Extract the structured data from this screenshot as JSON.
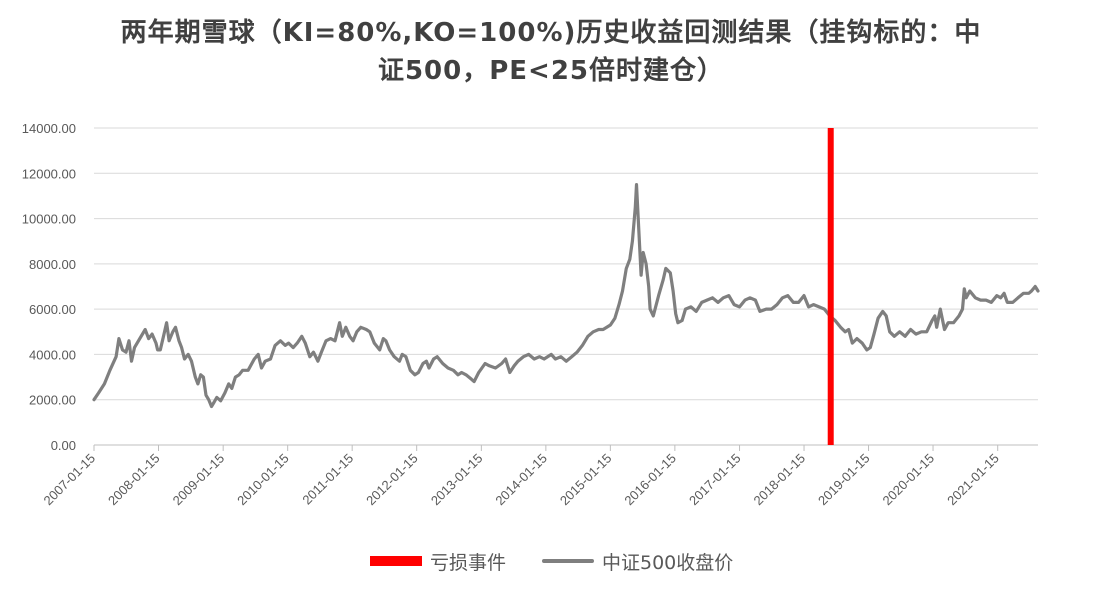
{
  "title": {
    "line1": "两年期雪球（KI=80%,KO=100%)历史收益回测结果（挂钩标的：中",
    "line2": "证500，PE<25倍时建仓）"
  },
  "legend": {
    "loss_label": "亏损事件",
    "index_label": "中证500收盘价"
  },
  "colors": {
    "loss": "#ff0000",
    "index": "#7f7f7f",
    "grid": "#d9d9d9",
    "axis_text": "#595959"
  },
  "chart_data": {
    "type": "line",
    "title": "两年期雪球（KI=80%,KO=100%)历史收益回测结果（挂钩标的：中证500，PE<25倍时建仓）",
    "ylim": [
      0,
      14000
    ],
    "y_ticks": [
      "0.00",
      "2000.00",
      "4000.00",
      "6000.00",
      "8000.00",
      "10000.00",
      "12000.00",
      "14000.00"
    ],
    "x_range": [
      "2007-01-15",
      "2021-08-31"
    ],
    "x_ticks": [
      "2007-01-15",
      "2008-01-15",
      "2009-01-15",
      "2010-01-15",
      "2011-01-15",
      "2012-01-15",
      "2013-01-15",
      "2014-01-15",
      "2015-01-15",
      "2016-01-15",
      "2017-01-15",
      "2018-01-15",
      "2019-01-15",
      "2020-01-15",
      "2021-01-15"
    ],
    "grid": "horizontal",
    "legend_position": "bottom",
    "series": [
      {
        "name": "中证500收盘价",
        "type": "line",
        "points": [
          [
            "2007-01-15",
            2000
          ],
          [
            "2007-02-10",
            2300
          ],
          [
            "2007-03-15",
            2700
          ],
          [
            "2007-04-15",
            3300
          ],
          [
            "2007-05-20",
            3900
          ],
          [
            "2007-06-05",
            4700
          ],
          [
            "2007-06-25",
            4200
          ],
          [
            "2007-07-15",
            4100
          ],
          [
            "2007-08-01",
            4600
          ],
          [
            "2007-08-15",
            3700
          ],
          [
            "2007-09-01",
            4300
          ],
          [
            "2007-10-01",
            4700
          ],
          [
            "2007-11-01",
            5100
          ],
          [
            "2007-11-20",
            4700
          ],
          [
            "2007-12-10",
            4900
          ],
          [
            "2008-01-01",
            4500
          ],
          [
            "2008-01-10",
            4200
          ],
          [
            "2008-01-25",
            4200
          ],
          [
            "2008-02-15",
            4900
          ],
          [
            "2008-03-01",
            5400
          ],
          [
            "2008-03-15",
            4600
          ],
          [
            "2008-04-05",
            5000
          ],
          [
            "2008-04-20",
            5200
          ],
          [
            "2008-05-10",
            4600
          ],
          [
            "2008-05-25",
            4300
          ],
          [
            "2008-06-10",
            3800
          ],
          [
            "2008-07-01",
            4000
          ],
          [
            "2008-07-20",
            3700
          ],
          [
            "2008-08-10",
            3000
          ],
          [
            "2008-08-25",
            2700
          ],
          [
            "2008-09-10",
            3100
          ],
          [
            "2008-09-25",
            3000
          ],
          [
            "2008-10-10",
            2200
          ],
          [
            "2008-10-25",
            2000
          ],
          [
            "2008-11-10",
            1700
          ],
          [
            "2008-11-25",
            1900
          ],
          [
            "2008-12-10",
            2100
          ],
          [
            "2009-01-01",
            1950
          ],
          [
            "2009-01-25",
            2300
          ],
          [
            "2009-02-15",
            2700
          ],
          [
            "2009-03-05",
            2500
          ],
          [
            "2009-03-25",
            3000
          ],
          [
            "2009-04-15",
            3100
          ],
          [
            "2009-05-05",
            3300
          ],
          [
            "2009-06-05",
            3300
          ],
          [
            "2009-07-10",
            3800
          ],
          [
            "2009-08-01",
            4000
          ],
          [
            "2009-08-20",
            3400
          ],
          [
            "2009-09-10",
            3700
          ],
          [
            "2009-10-10",
            3800
          ],
          [
            "2009-11-05",
            4400
          ],
          [
            "2009-12-05",
            4600
          ],
          [
            "2010-01-01",
            4400
          ],
          [
            "2010-01-20",
            4500
          ],
          [
            "2010-02-15",
            4300
          ],
          [
            "2010-03-10",
            4500
          ],
          [
            "2010-04-05",
            4800
          ],
          [
            "2010-04-25",
            4500
          ],
          [
            "2010-05-20",
            3900
          ],
          [
            "2010-06-10",
            4100
          ],
          [
            "2010-07-05",
            3700
          ],
          [
            "2010-07-25",
            4100
          ],
          [
            "2010-08-20",
            4600
          ],
          [
            "2010-09-15",
            4700
          ],
          [
            "2010-10-10",
            4600
          ],
          [
            "2010-11-05",
            5400
          ],
          [
            "2010-11-20",
            4800
          ],
          [
            "2010-12-10",
            5200
          ],
          [
            "2011-01-01",
            4800
          ],
          [
            "2011-01-20",
            4600
          ],
          [
            "2011-02-10",
            5000
          ],
          [
            "2011-03-05",
            5200
          ],
          [
            "2011-04-05",
            5100
          ],
          [
            "2011-04-25",
            5000
          ],
          [
            "2011-05-20",
            4500
          ],
          [
            "2011-06-20",
            4200
          ],
          [
            "2011-07-10",
            4700
          ],
          [
            "2011-07-25",
            4600
          ],
          [
            "2011-08-15",
            4200
          ],
          [
            "2011-09-10",
            3900
          ],
          [
            "2011-10-10",
            3700
          ],
          [
            "2011-10-25",
            4000
          ],
          [
            "2011-11-15",
            3900
          ],
          [
            "2011-12-10",
            3300
          ],
          [
            "2012-01-05",
            3100
          ],
          [
            "2012-01-25",
            3200
          ],
          [
            "2012-02-20",
            3600
          ],
          [
            "2012-03-10",
            3700
          ],
          [
            "2012-03-25",
            3400
          ],
          [
            "2012-04-20",
            3800
          ],
          [
            "2012-05-10",
            3900
          ],
          [
            "2012-06-10",
            3600
          ],
          [
            "2012-07-10",
            3400
          ],
          [
            "2012-08-10",
            3300
          ],
          [
            "2012-09-05",
            3100
          ],
          [
            "2012-09-25",
            3200
          ],
          [
            "2012-10-20",
            3100
          ],
          [
            "2012-11-20",
            2900
          ],
          [
            "2012-12-05",
            2800
          ],
          [
            "2012-12-31",
            3200
          ],
          [
            "2013-02-05",
            3600
          ],
          [
            "2013-03-01",
            3500
          ],
          [
            "2013-04-05",
            3400
          ],
          [
            "2013-05-10",
            3600
          ],
          [
            "2013-06-01",
            3800
          ],
          [
            "2013-06-25",
            3200
          ],
          [
            "2013-07-20",
            3500
          ],
          [
            "2013-08-10",
            3700
          ],
          [
            "2013-09-10",
            3900
          ],
          [
            "2013-10-10",
            4000
          ],
          [
            "2013-11-10",
            3800
          ],
          [
            "2013-12-10",
            3900
          ],
          [
            "2014-01-05",
            3800
          ],
          [
            "2014-02-15",
            4000
          ],
          [
            "2014-03-10",
            3800
          ],
          [
            "2014-04-10",
            3900
          ],
          [
            "2014-05-10",
            3700
          ],
          [
            "2014-06-10",
            3900
          ],
          [
            "2014-07-10",
            4100
          ],
          [
            "2014-08-10",
            4400
          ],
          [
            "2014-09-10",
            4800
          ],
          [
            "2014-10-10",
            5000
          ],
          [
            "2014-11-10",
            5100
          ],
          [
            "2014-12-05",
            5100
          ],
          [
            "2015-01-15",
            5300
          ],
          [
            "2015-02-10",
            5600
          ],
          [
            "2015-03-05",
            6200
          ],
          [
            "2015-03-25",
            6800
          ],
          [
            "2015-04-15",
            7800
          ],
          [
            "2015-05-05",
            8200
          ],
          [
            "2015-05-20",
            9000
          ],
          [
            "2015-06-05",
            10500
          ],
          [
            "2015-06-12",
            11500
          ],
          [
            "2015-06-25",
            9500
          ],
          [
            "2015-07-08",
            7500
          ],
          [
            "2015-07-20",
            8500
          ],
          [
            "2015-08-05",
            8000
          ],
          [
            "2015-08-20",
            7000
          ],
          [
            "2015-08-28",
            6000
          ],
          [
            "2015-09-15",
            5700
          ],
          [
            "2015-10-15",
            6600
          ],
          [
            "2015-11-10",
            7300
          ],
          [
            "2015-11-25",
            7800
          ],
          [
            "2015-12-20",
            7600
          ],
          [
            "2016-01-05",
            6800
          ],
          [
            "2016-01-20",
            5800
          ],
          [
            "2016-02-01",
            5400
          ],
          [
            "2016-02-25",
            5500
          ],
          [
            "2016-03-15",
            6000
          ],
          [
            "2016-04-15",
            6100
          ],
          [
            "2016-05-15",
            5900
          ],
          [
            "2016-06-15",
            6300
          ],
          [
            "2016-07-15",
            6400
          ],
          [
            "2016-08-15",
            6500
          ],
          [
            "2016-09-15",
            6300
          ],
          [
            "2016-10-15",
            6500
          ],
          [
            "2016-11-15",
            6600
          ],
          [
            "2016-12-15",
            6200
          ],
          [
            "2017-01-15",
            6100
          ],
          [
            "2017-02-15",
            6400
          ],
          [
            "2017-03-15",
            6500
          ],
          [
            "2017-04-15",
            6400
          ],
          [
            "2017-05-10",
            5900
          ],
          [
            "2017-06-15",
            6000
          ],
          [
            "2017-07-15",
            6000
          ],
          [
            "2017-08-15",
            6200
          ],
          [
            "2017-09-15",
            6500
          ],
          [
            "2017-10-15",
            6600
          ],
          [
            "2017-11-15",
            6300
          ],
          [
            "2017-12-15",
            6300
          ],
          [
            "2018-01-15",
            6600
          ],
          [
            "2018-02-10",
            6100
          ],
          [
            "2018-03-10",
            6200
          ],
          [
            "2018-04-10",
            6100
          ],
          [
            "2018-05-10",
            6000
          ],
          [
            "2018-06-10",
            5700
          ],
          [
            "2018-07-10",
            5500
          ],
          [
            "2018-08-10",
            5200
          ],
          [
            "2018-09-05",
            5000
          ],
          [
            "2018-09-25",
            5100
          ],
          [
            "2018-10-15",
            4500
          ],
          [
            "2018-11-10",
            4700
          ],
          [
            "2018-12-10",
            4500
          ],
          [
            "2019-01-05",
            4200
          ],
          [
            "2019-01-25",
            4300
          ],
          [
            "2019-02-15",
            4900
          ],
          [
            "2019-03-10",
            5600
          ],
          [
            "2019-04-05",
            5900
          ],
          [
            "2019-04-25",
            5700
          ],
          [
            "2019-05-15",
            5000
          ],
          [
            "2019-06-10",
            4800
          ],
          [
            "2019-07-10",
            5000
          ],
          [
            "2019-08-10",
            4800
          ],
          [
            "2019-09-10",
            5100
          ],
          [
            "2019-10-10",
            4900
          ],
          [
            "2019-11-10",
            5000
          ],
          [
            "2019-12-10",
            5000
          ],
          [
            "2020-01-10",
            5500
          ],
          [
            "2020-01-25",
            5700
          ],
          [
            "2020-02-05",
            5200
          ],
          [
            "2020-02-25",
            6000
          ],
          [
            "2020-03-20",
            5100
          ],
          [
            "2020-04-10",
            5400
          ],
          [
            "2020-05-10",
            5400
          ],
          [
            "2020-06-10",
            5700
          ],
          [
            "2020-06-30",
            6000
          ],
          [
            "2020-07-10",
            6900
          ],
          [
            "2020-07-20",
            6500
          ],
          [
            "2020-08-10",
            6800
          ],
          [
            "2020-09-10",
            6500
          ],
          [
            "2020-10-10",
            6400
          ],
          [
            "2020-11-10",
            6400
          ],
          [
            "2020-12-10",
            6300
          ],
          [
            "2021-01-10",
            6600
          ],
          [
            "2021-02-01",
            6500
          ],
          [
            "2021-02-20",
            6700
          ],
          [
            "2021-03-10",
            6300
          ],
          [
            "2021-04-10",
            6300
          ],
          [
            "2021-05-10",
            6500
          ],
          [
            "2021-06-10",
            6700
          ],
          [
            "2021-07-10",
            6700
          ],
          [
            "2021-07-25",
            6800
          ],
          [
            "2021-08-15",
            7000
          ],
          [
            "2021-08-31",
            6800
          ]
        ]
      },
      {
        "name": "亏损事件",
        "type": "vertical-bar",
        "date": "2018-06-15",
        "value": 14000
      }
    ]
  }
}
